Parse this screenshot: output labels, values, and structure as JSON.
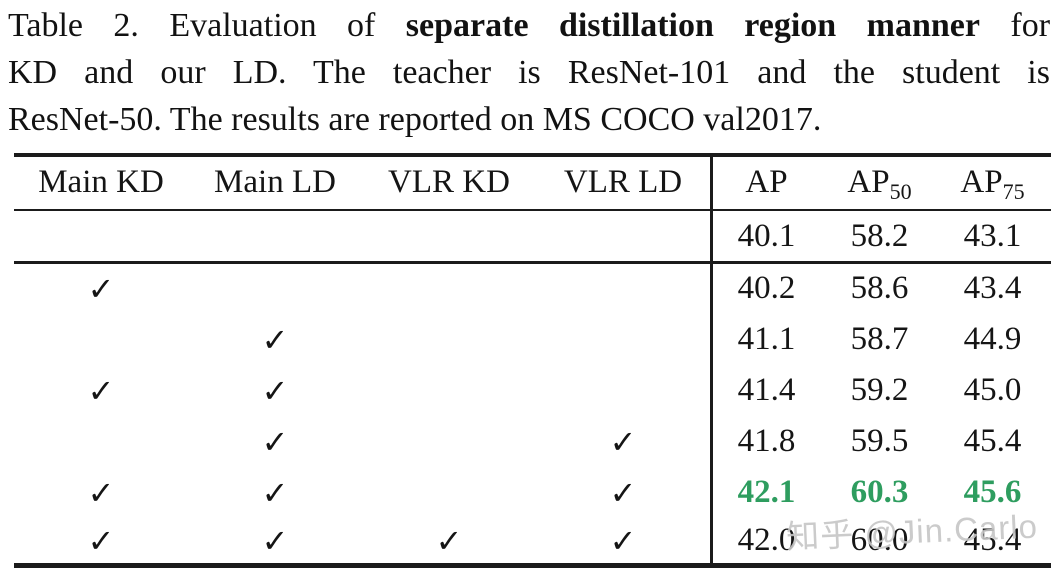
{
  "caption": {
    "line1_pre": "Table 2.  Evaluation of ",
    "line1_bold": "separate distillation region manner",
    "line1_post": " for",
    "line2": "KD and our LD. The teacher is ResNet-101 and the student is",
    "line3": "ResNet-50. The results are reported on MS COCO val2017."
  },
  "table": {
    "headers": {
      "col1": "Main KD",
      "col2": "Main LD",
      "col3": "VLR KD",
      "col4": "VLR LD",
      "ap": "AP",
      "ap50_base": "AP",
      "ap50_sub": "50",
      "ap75_base": "AP",
      "ap75_sub": "75"
    },
    "check_glyph": "✓",
    "rows": [
      {
        "marks": [
          "",
          "",
          "",
          ""
        ],
        "ap": "40.1",
        "ap50": "58.2",
        "ap75": "43.1",
        "highlight": false
      },
      {
        "marks": [
          "✓",
          "",
          "",
          ""
        ],
        "ap": "40.2",
        "ap50": "58.6",
        "ap75": "43.4",
        "highlight": false
      },
      {
        "marks": [
          "",
          "✓",
          "",
          ""
        ],
        "ap": "41.1",
        "ap50": "58.7",
        "ap75": "44.9",
        "highlight": false
      },
      {
        "marks": [
          "✓",
          "✓",
          "",
          ""
        ],
        "ap": "41.4",
        "ap50": "59.2",
        "ap75": "45.0",
        "highlight": false
      },
      {
        "marks": [
          "",
          "✓",
          "",
          "✓"
        ],
        "ap": "41.8",
        "ap50": "59.5",
        "ap75": "45.4",
        "highlight": false
      },
      {
        "marks": [
          "✓",
          "✓",
          "",
          "✓"
        ],
        "ap": "42.1",
        "ap50": "60.3",
        "ap75": "45.6",
        "highlight": true
      },
      {
        "marks": [
          "✓",
          "✓",
          "✓",
          "✓"
        ],
        "ap": "42.0",
        "ap50": "60.0",
        "ap75": "45.4",
        "highlight": false
      }
    ]
  },
  "watermark": {
    "text": "知乎 @Jin.Carlo"
  },
  "colors": {
    "highlight": "#2e9d5f",
    "watermark": "#c6c6c6",
    "rule": "#1b1b1b"
  }
}
